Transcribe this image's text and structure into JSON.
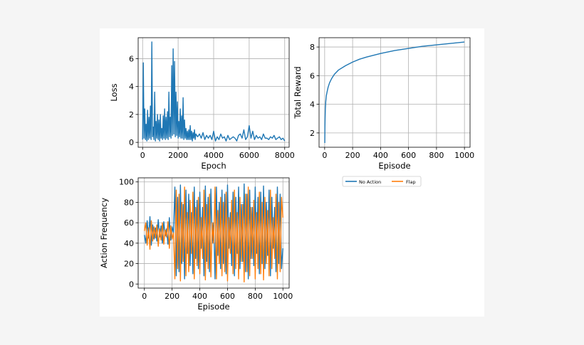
{
  "chart_data": [
    {
      "id": "loss",
      "type": "line",
      "title": "",
      "xlabel": "Epoch",
      "ylabel": "Loss",
      "xlim": [
        -250,
        8250
      ],
      "ylim": [
        -0.35,
        7.5
      ],
      "xticks": [
        0,
        2000,
        4000,
        6000,
        8000
      ],
      "yticks": [
        0,
        2,
        4,
        6
      ],
      "grid": true,
      "series": [
        {
          "color": "#1f77b4",
          "x": [
            0,
            40,
            80,
            120,
            160,
            200,
            240,
            280,
            320,
            360,
            400,
            440,
            480,
            520,
            560,
            600,
            640,
            680,
            720,
            760,
            800,
            840,
            880,
            920,
            960,
            1000,
            1040,
            1080,
            1120,
            1160,
            1200,
            1240,
            1280,
            1320,
            1360,
            1400,
            1440,
            1480,
            1520,
            1560,
            1600,
            1640,
            1680,
            1720,
            1760,
            1800,
            1840,
            1880,
            1920,
            1960,
            2000,
            2040,
            2080,
            2120,
            2160,
            2200,
            2240,
            2280,
            2320,
            2360,
            2400,
            2440,
            2480,
            2520,
            2560,
            2600,
            2640,
            2680,
            2720,
            2760,
            2800,
            2840,
            2880,
            2920,
            2960,
            3000,
            3100,
            3200,
            3300,
            3400,
            3500,
            3600,
            3700,
            3800,
            3900,
            4000,
            4100,
            4200,
            4300,
            4400,
            4500,
            4600,
            4700,
            4800,
            4900,
            5000,
            5100,
            5200,
            5300,
            5400,
            5500,
            5600,
            5700,
            5800,
            5900,
            6000,
            6100,
            6200,
            6300,
            6400,
            6500,
            6600,
            6700,
            6800,
            6900,
            7000,
            7100,
            7200,
            7300,
            7400,
            7500,
            7600,
            7700,
            7800,
            7900,
            8000
          ],
          "y": [
            0.2,
            5.7,
            0.3,
            2.4,
            0.2,
            1.3,
            0.1,
            2.3,
            0.2,
            1.8,
            0.3,
            2.6,
            0.2,
            7.2,
            0.4,
            1.1,
            0.2,
            3.6,
            0.1,
            1.5,
            0.3,
            2.0,
            0.2,
            1.6,
            0.1,
            2.0,
            0.3,
            1.0,
            0.2,
            1.9,
            0.3,
            2.4,
            0.2,
            1.8,
            0.3,
            2.2,
            0.2,
            3.6,
            0.4,
            1.8,
            0.3,
            5.5,
            0.5,
            6.7,
            0.6,
            5.8,
            0.4,
            3.6,
            0.5,
            2.9,
            0.3,
            1.5,
            0.4,
            2.4,
            0.3,
            1.9,
            0.3,
            3.2,
            0.2,
            1.6,
            0.3,
            1.0,
            0.2,
            0.8,
            0.2,
            0.9,
            0.2,
            1.2,
            0.2,
            0.8,
            0.1,
            0.7,
            0.3,
            0.9,
            0.2,
            0.6,
            0.4,
            0.6,
            0.3,
            0.7,
            0.2,
            0.5,
            0.3,
            0.5,
            0.2,
            0.8,
            0.1,
            0.4,
            0.2,
            0.6,
            0.3,
            0.4,
            0.1,
            0.5,
            0.2,
            0.3,
            0.4,
            0.3,
            0.1,
            0.5,
            0.6,
            0.3,
            0.9,
            0.2,
            0.4,
            1.2,
            0.3,
            0.8,
            0.2,
            0.5,
            0.3,
            0.4,
            0.2,
            0.6,
            0.3,
            0.3,
            0.2,
            0.4,
            0.3,
            0.5,
            0.2,
            0.3,
            0.4,
            0.2,
            0.3,
            0.1
          ]
        }
      ]
    },
    {
      "id": "reward",
      "type": "line",
      "title": "",
      "xlabel": "Episode",
      "ylabel": "Total Reward",
      "xlim": [
        -40,
        1040
      ],
      "ylim": [
        1.0,
        8.65
      ],
      "xticks": [
        0,
        200,
        400,
        600,
        800,
        1000
      ],
      "yticks": [
        2,
        4,
        6,
        8
      ],
      "grid": true,
      "series": [
        {
          "color": "#1f77b4",
          "x": [
            1,
            2,
            3,
            5,
            8,
            12,
            18,
            25,
            35,
            50,
            70,
            100,
            150,
            200,
            250,
            300,
            400,
            500,
            600,
            700,
            800,
            900,
            1000
          ],
          "y": [
            1.3,
            2.4,
            3.0,
            3.7,
            4.2,
            4.6,
            4.9,
            5.2,
            5.5,
            5.8,
            6.1,
            6.4,
            6.7,
            6.95,
            7.15,
            7.3,
            7.55,
            7.75,
            7.9,
            8.05,
            8.15,
            8.25,
            8.35
          ]
        }
      ]
    },
    {
      "id": "action",
      "type": "line",
      "title": "",
      "xlabel": "Episode",
      "ylabel": "Action Frequency",
      "xlim": [
        -45,
        1045
      ],
      "ylim": [
        -4,
        104
      ],
      "xticks": [
        0,
        200,
        400,
        600,
        800,
        1000
      ],
      "yticks": [
        0,
        20,
        40,
        60,
        80,
        100
      ],
      "grid": true,
      "legend": {
        "placement": "below",
        "columns": 2
      },
      "series": [
        {
          "name": "No Action",
          "color": "#1f77b4",
          "x": [
            0,
            10,
            20,
            30,
            40,
            50,
            60,
            70,
            80,
            90,
            100,
            110,
            120,
            130,
            140,
            150,
            160,
            170,
            180,
            190,
            200,
            210,
            220,
            230,
            240,
            250,
            260,
            270,
            280,
            290,
            300,
            310,
            320,
            330,
            340,
            350,
            360,
            370,
            380,
            390,
            400,
            410,
            420,
            430,
            440,
            450,
            460,
            470,
            480,
            490,
            500,
            510,
            520,
            530,
            540,
            550,
            560,
            570,
            580,
            590,
            600,
            610,
            620,
            630,
            640,
            650,
            660,
            670,
            680,
            690,
            700,
            710,
            720,
            730,
            740,
            750,
            760,
            770,
            780,
            790,
            800,
            810,
            820,
            830,
            840,
            850,
            860,
            870,
            880,
            890,
            900,
            910,
            920,
            930,
            940,
            950,
            960,
            970,
            980,
            990,
            1000
          ],
          "y": [
            48,
            40,
            62,
            45,
            66,
            38,
            58,
            44,
            55,
            42,
            63,
            46,
            57,
            40,
            61,
            47,
            54,
            39,
            65,
            43,
            56,
            50,
            95,
            8,
            85,
            12,
            97,
            20,
            78,
            5,
            92,
            30,
            88,
            18,
            70,
            10,
            95,
            25,
            82,
            15,
            90,
            35,
            75,
            8,
            96,
            22,
            85,
            12,
            93,
            40,
            60,
            5,
            95,
            28,
            80,
            15,
            92,
            20,
            88,
            10,
            97,
            35,
            70,
            18,
            90,
            8,
            85,
            30,
            95,
            15,
            78,
            22,
            98,
            12,
            88,
            5,
            92,
            25,
            75,
            18,
            95,
            30,
            85,
            10,
            90,
            20,
            96,
            15,
            80,
            28,
            92,
            8,
            85,
            35,
            75,
            12,
            95,
            20,
            88,
            15,
            35
          ]
        },
        {
          "name": "Flap",
          "color": "#ff7f0e",
          "x": [
            0,
            10,
            20,
            30,
            40,
            50,
            60,
            70,
            80,
            90,
            100,
            110,
            120,
            130,
            140,
            150,
            160,
            170,
            180,
            190,
            200,
            210,
            220,
            230,
            240,
            250,
            260,
            270,
            280,
            290,
            300,
            310,
            320,
            330,
            340,
            350,
            360,
            370,
            380,
            390,
            400,
            410,
            420,
            430,
            440,
            450,
            460,
            470,
            480,
            490,
            500,
            510,
            520,
            530,
            540,
            550,
            560,
            570,
            580,
            590,
            600,
            610,
            620,
            630,
            640,
            650,
            660,
            670,
            680,
            690,
            700,
            710,
            720,
            730,
            740,
            750,
            760,
            770,
            780,
            790,
            800,
            810,
            820,
            830,
            840,
            850,
            860,
            870,
            880,
            890,
            900,
            910,
            920,
            930,
            940,
            950,
            960,
            970,
            980,
            990,
            1000
          ],
          "y": [
            52,
            60,
            38,
            55,
            34,
            62,
            42,
            56,
            45,
            58,
            37,
            54,
            43,
            60,
            39,
            53,
            46,
            61,
            35,
            57,
            44,
            50,
            5,
            92,
            15,
            88,
            3,
            80,
            22,
            95,
            8,
            70,
            12,
            82,
            30,
            90,
            5,
            75,
            18,
            85,
            10,
            65,
            25,
            92,
            4,
            78,
            15,
            88,
            7,
            60,
            40,
            95,
            5,
            72,
            20,
            85,
            8,
            80,
            12,
            90,
            3,
            65,
            30,
            82,
            10,
            92,
            15,
            70,
            5,
            85,
            22,
            78,
            2,
            88,
            12,
            95,
            8,
            75,
            25,
            82,
            5,
            70,
            15,
            90,
            10,
            80,
            4,
            85,
            20,
            72,
            8,
            92,
            15,
            65,
            25,
            88,
            5,
            80,
            12,
            85,
            65
          ]
        }
      ]
    }
  ]
}
